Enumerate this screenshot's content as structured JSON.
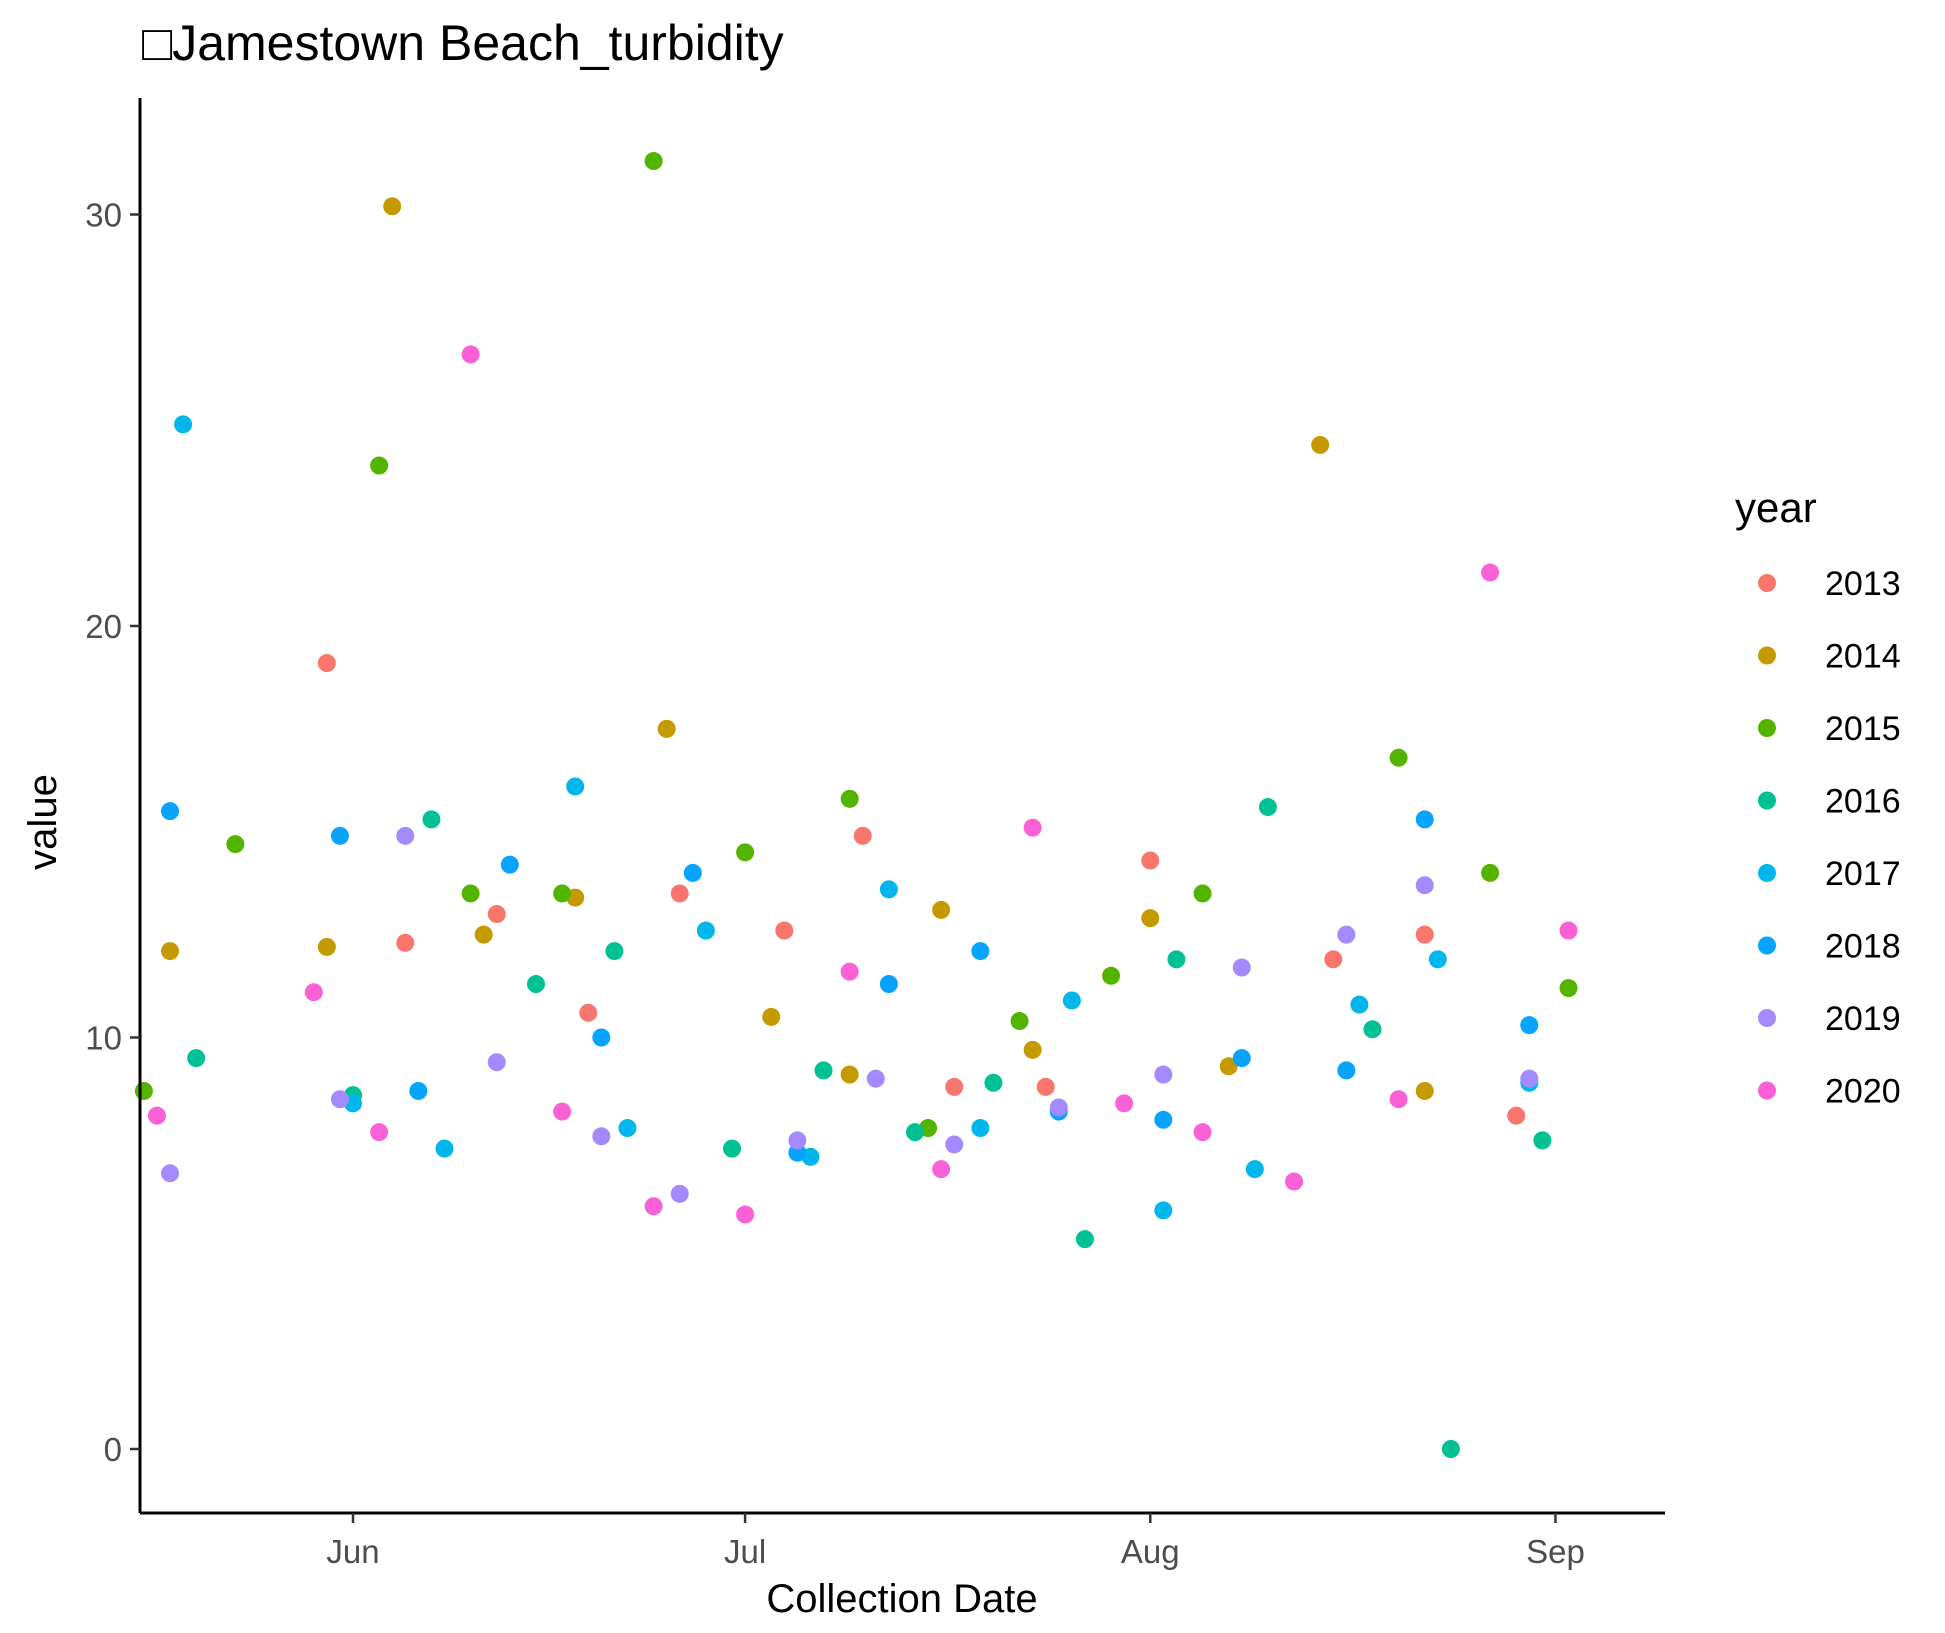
{
  "chart_data": {
    "type": "scatter",
    "title": "□Jamestown Beach_turbidity",
    "xlabel": "Collection Date",
    "ylabel": "value",
    "x_scale": "date (days of year, no year component)",
    "x_ticks": [
      {
        "label": "Jun",
        "date": "06-01"
      },
      {
        "label": "Jul",
        "date": "07-01"
      },
      {
        "label": "Aug",
        "date": "08-01"
      },
      {
        "label": "Sep",
        "date": "09-01"
      }
    ],
    "xlim": [
      "05-16",
      "09-03"
    ],
    "y_ticks": [
      0,
      10,
      20,
      30
    ],
    "ylim": [
      -1.5,
      32.8
    ],
    "grid": false,
    "legend": {
      "title": "year",
      "position": "right"
    },
    "series": [
      {
        "name": "2013",
        "color": "#F8766D",
        "points": [
          [
            "05-30",
            19.1
          ],
          [
            "06-05",
            12.3
          ],
          [
            "06-12",
            13.0
          ],
          [
            "06-19",
            10.6
          ],
          [
            "06-26",
            13.5
          ],
          [
            "07-04",
            12.6
          ],
          [
            "07-10",
            14.9
          ],
          [
            "07-17",
            8.8
          ],
          [
            "07-24",
            8.8
          ],
          [
            "08-01",
            14.3
          ],
          [
            "08-15",
            11.9
          ],
          [
            "08-22",
            12.5
          ],
          [
            "08-29",
            8.1
          ]
        ]
      },
      {
        "name": "2014",
        "color": "#C49A00",
        "points": [
          [
            "05-18",
            12.1
          ],
          [
            "05-30",
            12.2
          ],
          [
            "06-04",
            30.2
          ],
          [
            "06-11",
            12.5
          ],
          [
            "06-18",
            13.4
          ],
          [
            "06-25",
            17.5
          ],
          [
            "07-03",
            10.5
          ],
          [
            "07-09",
            9.1
          ],
          [
            "07-16",
            13.1
          ],
          [
            "07-23",
            9.7
          ],
          [
            "08-01",
            12.9
          ],
          [
            "08-07",
            9.3
          ],
          [
            "08-14",
            24.4
          ],
          [
            "08-22",
            8.7
          ]
        ]
      },
      {
        "name": "2015",
        "color": "#53B400",
        "points": [
          [
            "05-16",
            8.7
          ],
          [
            "05-23",
            14.7
          ],
          [
            "06-03",
            23.9
          ],
          [
            "06-10",
            13.5
          ],
          [
            "06-17",
            13.5
          ],
          [
            "06-24",
            31.3
          ],
          [
            "07-01",
            14.5
          ],
          [
            "07-09",
            15.8
          ],
          [
            "07-15",
            7.8
          ],
          [
            "07-22",
            10.4
          ],
          [
            "07-29",
            11.5
          ],
          [
            "08-05",
            13.5
          ],
          [
            "08-20",
            16.8
          ],
          [
            "08-27",
            14.0
          ],
          [
            "09-02",
            11.2
          ]
        ]
      },
      {
        "name": "2016",
        "color": "#00C094",
        "points": [
          [
            "05-20",
            9.5
          ],
          [
            "06-01",
            8.6
          ],
          [
            "06-07",
            15.3
          ],
          [
            "06-15",
            11.3
          ],
          [
            "06-21",
            12.1
          ],
          [
            "06-30",
            7.3
          ],
          [
            "07-07",
            9.2
          ],
          [
            "07-14",
            7.7
          ],
          [
            "07-20",
            8.9
          ],
          [
            "07-27",
            5.1
          ],
          [
            "08-03",
            11.9
          ],
          [
            "08-10",
            15.6
          ],
          [
            "08-18",
            10.2
          ],
          [
            "08-24",
            0.0
          ],
          [
            "08-31",
            7.5
          ]
        ]
      },
      {
        "name": "2017",
        "color": "#00B6EB",
        "points": [
          [
            "05-19",
            24.9
          ],
          [
            "06-01",
            8.4
          ],
          [
            "06-08",
            7.3
          ],
          [
            "06-18",
            16.1
          ],
          [
            "06-22",
            7.8
          ],
          [
            "06-28",
            12.6
          ],
          [
            "07-06",
            7.1
          ],
          [
            "07-12",
            13.6
          ],
          [
            "07-19",
            7.8
          ],
          [
            "07-26",
            10.9
          ],
          [
            "08-02",
            5.8
          ],
          [
            "08-09",
            6.8
          ],
          [
            "08-17",
            10.8
          ],
          [
            "08-23",
            11.9
          ],
          [
            "08-30",
            8.9
          ]
        ]
      },
      {
        "name": "2018",
        "color": "#06A4FF",
        "points": [
          [
            "05-18",
            15.5
          ],
          [
            "05-31",
            14.9
          ],
          [
            "06-06",
            8.7
          ],
          [
            "06-13",
            14.2
          ],
          [
            "06-20",
            10.0
          ],
          [
            "06-27",
            14.0
          ],
          [
            "07-05",
            7.2
          ],
          [
            "07-12",
            11.3
          ],
          [
            "07-19",
            12.1
          ],
          [
            "07-25",
            8.2
          ],
          [
            "08-02",
            8.0
          ],
          [
            "08-08",
            9.5
          ],
          [
            "08-16",
            9.2
          ],
          [
            "08-22",
            15.3
          ],
          [
            "08-30",
            10.3
          ]
        ]
      },
      {
        "name": "2019",
        "color": "#A58AFF",
        "points": [
          [
            "05-18",
            6.7
          ],
          [
            "05-31",
            8.5
          ],
          [
            "06-05",
            14.9
          ],
          [
            "06-12",
            9.4
          ],
          [
            "06-20",
            7.6
          ],
          [
            "06-26",
            6.2
          ],
          [
            "07-05",
            7.5
          ],
          [
            "07-11",
            9.0
          ],
          [
            "07-17",
            7.4
          ],
          [
            "07-25",
            8.3
          ],
          [
            "08-02",
            9.1
          ],
          [
            "08-08",
            11.7
          ],
          [
            "08-16",
            12.5
          ],
          [
            "08-22",
            13.7
          ],
          [
            "08-30",
            9.0
          ]
        ]
      },
      {
        "name": "2020",
        "color": "#FB61D7",
        "points": [
          [
            "05-17",
            8.1
          ],
          [
            "05-29",
            11.1
          ],
          [
            "06-03",
            7.7
          ],
          [
            "06-10",
            26.6
          ],
          [
            "06-17",
            8.2
          ],
          [
            "06-24",
            5.9
          ],
          [
            "07-01",
            5.7
          ],
          [
            "07-09",
            11.6
          ],
          [
            "07-16",
            6.8
          ],
          [
            "07-23",
            15.1
          ],
          [
            "07-30",
            8.4
          ],
          [
            "08-05",
            7.7
          ],
          [
            "08-12",
            6.5
          ],
          [
            "08-20",
            8.5
          ],
          [
            "08-27",
            21.3
          ],
          [
            "09-02",
            12.6
          ]
        ]
      }
    ]
  }
}
